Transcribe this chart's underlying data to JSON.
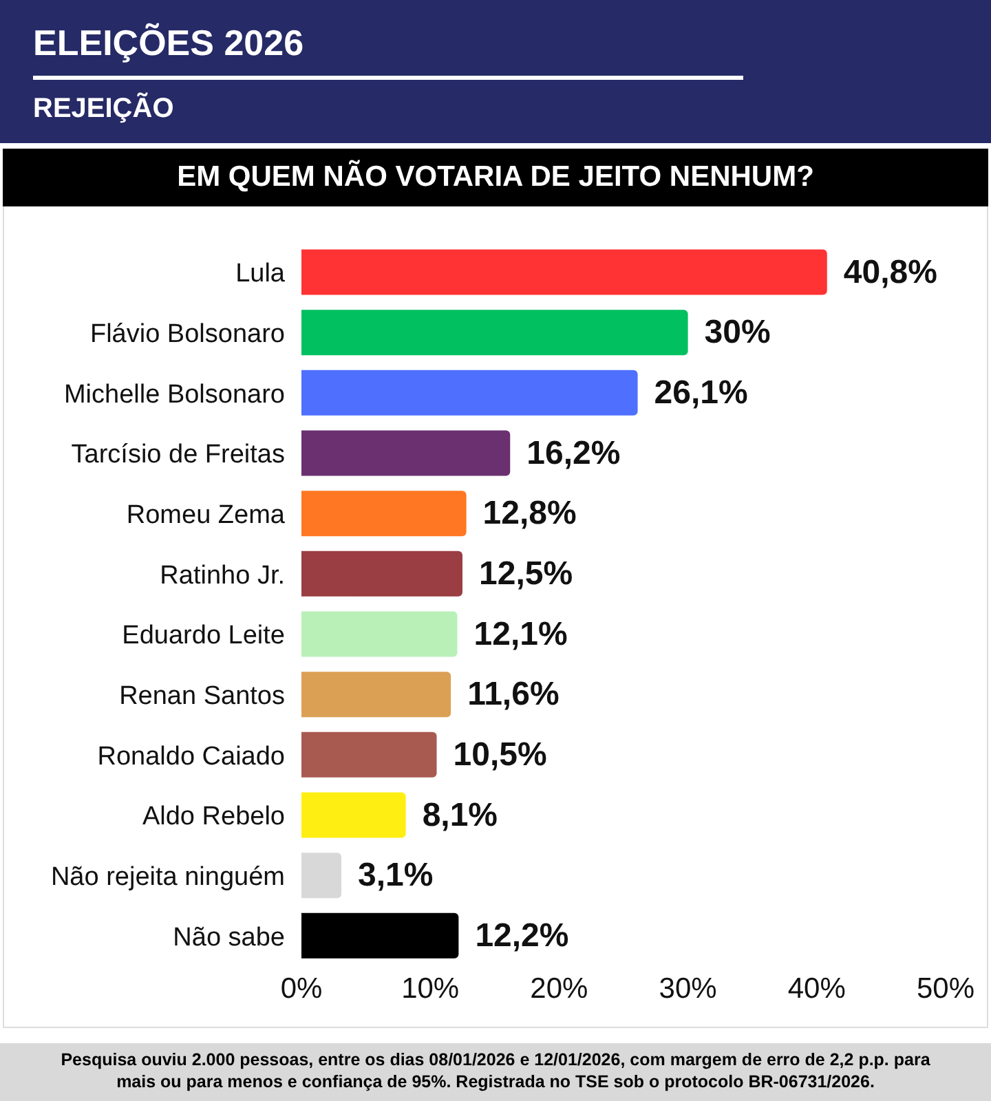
{
  "chart_data": {
    "type": "bar",
    "orientation": "horizontal",
    "title": "ELEIÇÕES 2026",
    "subtitle": "REJEIÇÃO",
    "annotations": [
      "EM QUEM NÃO VOTARIA DE JEITO NENHUM?",
      "Pesquisa ouviu 2.000 pessoas, entre os dias 08/01/2026 e 12/01/2026, com margem de erro de 2,2 p.p. para mais ou para menos e confiança de 95%. Registrada no TSE sob o protocolo BR-06731/2026."
    ],
    "categories": [
      "Lula",
      "Flávio Bolsonaro",
      "Michelle Bolsonaro",
      "Tarcísio de Freitas",
      "Romeu Zema",
      "Ratinho Jr.",
      "Eduardo Leite",
      "Renan Santos",
      "Ronaldo Caiado",
      "Aldo Rebelo",
      "Não rejeita ninguém",
      "Não sabe"
    ],
    "values": [
      40.8,
      30,
      26.1,
      16.2,
      12.8,
      12.5,
      12.1,
      11.6,
      10.5,
      8.1,
      3.1,
      12.2
    ],
    "value_labels": [
      "40,8%",
      "30%",
      "26,1%",
      "16,2%",
      "12,8%",
      "12,5%",
      "12,1%",
      "11,6%",
      "10,5%",
      "8,1%",
      "3,1%",
      "12,2%"
    ],
    "colors": [
      "#ff3333",
      "#00c060",
      "#4f6fff",
      "#6a3070",
      "#ff7722",
      "#9a3e44",
      "#b8f0b8",
      "#dca055",
      "#a85a50",
      "#ffee11",
      "#d8d8d8",
      "#000000"
    ],
    "xlim": [
      0,
      50
    ],
    "xticks": [
      {
        "value": 0,
        "label": "0%"
      },
      {
        "value": 10,
        "label": "10%"
      },
      {
        "value": 20,
        "label": "20%"
      },
      {
        "value": 30,
        "label": "30%"
      },
      {
        "value": 40,
        "label": "40%"
      },
      {
        "value": 50,
        "label": "50%"
      }
    ],
    "grid": false,
    "legend": false
  }
}
